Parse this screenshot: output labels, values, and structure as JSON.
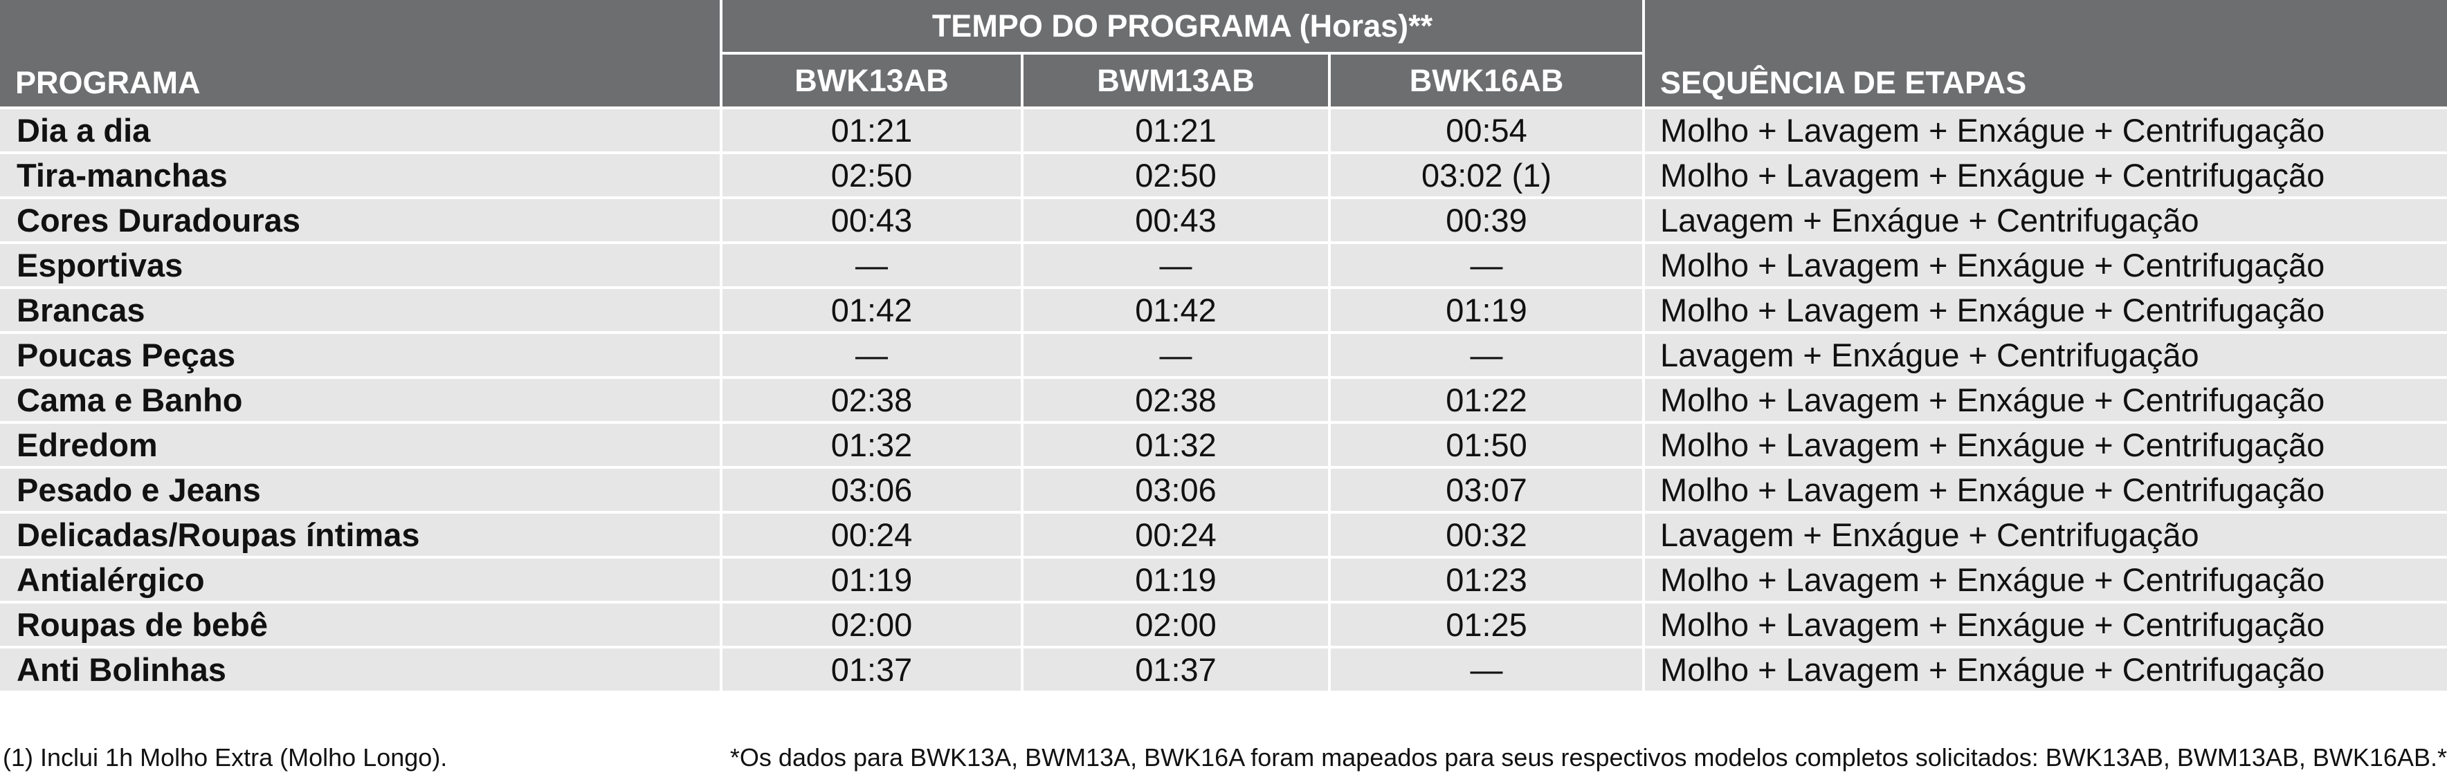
{
  "header": {
    "group_title": "TEMPO DO PROGRAMA (Horas)**",
    "program_label": "PROGRAMA",
    "models": [
      "BWK13AB",
      "BWM13AB",
      "BWK16AB"
    ],
    "sequence_label": "SEQUÊNCIA DE ETAPAS"
  },
  "rows": [
    {
      "program": "Dia a dia",
      "times": [
        "01:21",
        "01:21",
        "00:54"
      ],
      "sequence": "Molho + Lavagem + Enxágue + Centrifugação"
    },
    {
      "program": "Tira-manchas",
      "times": [
        "02:50",
        "02:50",
        "03:02 (1)"
      ],
      "sequence": "Molho + Lavagem + Enxágue + Centrifugação"
    },
    {
      "program": "Cores Duradouras",
      "times": [
        "00:43",
        "00:43",
        "00:39"
      ],
      "sequence": "Lavagem + Enxágue + Centrifugação"
    },
    {
      "program": "Esportivas",
      "times": [
        "—",
        "—",
        "—"
      ],
      "sequence": "Molho + Lavagem + Enxágue + Centrifugação"
    },
    {
      "program": "Brancas",
      "times": [
        "01:42",
        "01:42",
        "01:19"
      ],
      "sequence": "Molho + Lavagem + Enxágue + Centrifugação"
    },
    {
      "program": "Poucas Peças",
      "times": [
        "—",
        "—",
        "—"
      ],
      "sequence": "Lavagem + Enxágue + Centrifugação"
    },
    {
      "program": "Cama e Banho",
      "times": [
        "02:38",
        "02:38",
        "01:22"
      ],
      "sequence": "Molho + Lavagem + Enxágue + Centrifugação"
    },
    {
      "program": "Edredom",
      "times": [
        "01:32",
        "01:32",
        "01:50"
      ],
      "sequence": "Molho + Lavagem + Enxágue + Centrifugação"
    },
    {
      "program": "Pesado e Jeans",
      "times": [
        "03:06",
        "03:06",
        "03:07"
      ],
      "sequence": "Molho + Lavagem + Enxágue + Centrifugação"
    },
    {
      "program": "Delicadas/Roupas íntimas",
      "times": [
        "00:24",
        "00:24",
        "00:32"
      ],
      "sequence": "Lavagem + Enxágue + Centrifugação"
    },
    {
      "program": "Antialérgico",
      "times": [
        "01:19",
        "01:19",
        "01:23"
      ],
      "sequence": "Molho + Lavagem + Enxágue + Centrifugação"
    },
    {
      "program": "Roupas de bebê",
      "times": [
        "02:00",
        "02:00",
        "01:25"
      ],
      "sequence": "Molho + Lavagem + Enxágue + Centrifugação"
    },
    {
      "program": "Anti Bolinhas",
      "times": [
        "01:37",
        "01:37",
        "—"
      ],
      "sequence": "Molho + Lavagem + Enxágue + Centrifugação"
    }
  ],
  "footnotes": [
    "(1) Inclui 1h Molho Extra (Molho Longo).",
    "*Os dados para BWK13A, BWM13A, BWK16A foram mapeados para seus respectivos modelos completos solicitados: BWK13AB, BWM13AB, BWK16AB.*"
  ]
}
